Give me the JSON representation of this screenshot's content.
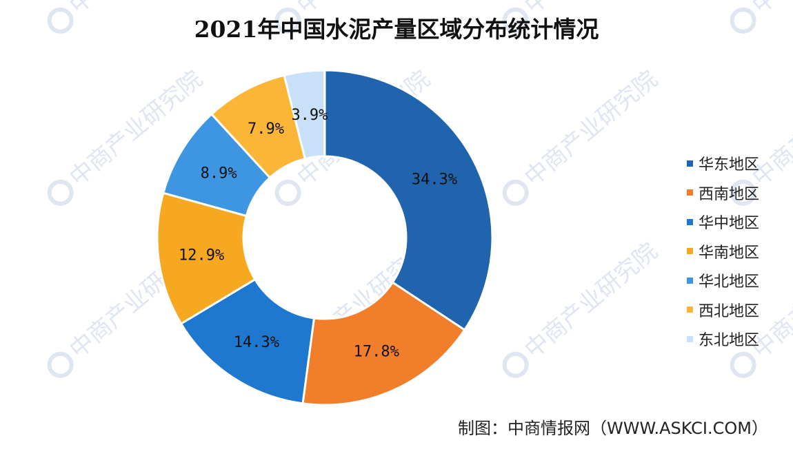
{
  "title": "2021年中国水泥产量区域分布统计情况",
  "source": "制图：中商情报网（WWW.ASKCI.COM）",
  "watermark": {
    "text": "中商产业研究院",
    "color": "#dfe6f1"
  },
  "chart_data": {
    "type": "pie",
    "donut": true,
    "legend_position": "right",
    "title": "2021年中国水泥产量区域分布统计情况",
    "categories": [
      "华东地区",
      "西南地区",
      "华中地区",
      "华南地区",
      "华北地区",
      "西北地区",
      "东北地区"
    ],
    "values": [
      34.3,
      17.8,
      14.3,
      12.9,
      8.9,
      7.9,
      3.9
    ],
    "labels": [
      "34.3%",
      "17.8%",
      "14.3%",
      "12.9%",
      "8.9%",
      "7.9%",
      "3.9%"
    ],
    "colors": [
      "#1f64ad",
      "#f07e2a",
      "#1f78d0",
      "#f7a821",
      "#3e96e2",
      "#fbb637",
      "#c9e1f8"
    ]
  }
}
